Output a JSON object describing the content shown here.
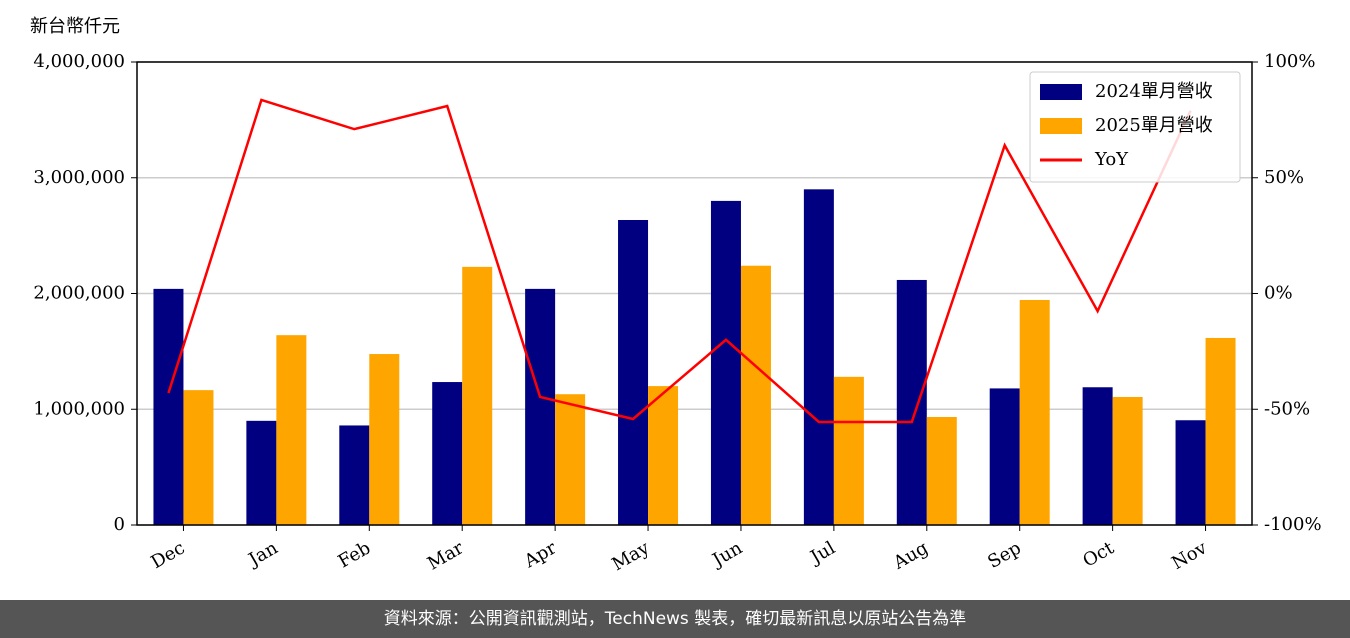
{
  "chart_data": {
    "type": "bar-line",
    "ylabel": "新台幣仟元",
    "categories": [
      "Dec",
      "Jan",
      "Feb",
      "Mar",
      "Apr",
      "May",
      "Jun",
      "Jul",
      "Aug",
      "Sep",
      "Oct",
      "Nov"
    ],
    "series": [
      {
        "name": "2024單月營收",
        "type": "bar",
        "color": "#000080",
        "values": [
          2040000,
          900000,
          860000,
          1235000,
          2040000,
          2635000,
          2800000,
          2900000,
          2117000,
          1180000,
          1190000,
          905000
        ]
      },
      {
        "name": "2025單月營收",
        "type": "bar",
        "color": "#ffa500",
        "values": [
          1165000,
          1640000,
          1477000,
          2230000,
          1130000,
          1200000,
          2240000,
          1280000,
          933000,
          1944000,
          1106000,
          1616000
        ]
      },
      {
        "name": "YoY",
        "type": "line",
        "axis": "y2",
        "color": "#ff0000",
        "values": [
          -43,
          83.6,
          71,
          81,
          -44.7,
          -54.2,
          -20,
          -55.5,
          -55.5,
          64,
          -7.6,
          79
        ]
      }
    ],
    "ylim": [
      0,
      4000000
    ],
    "yticks": [
      0,
      {
        "value": 1000000,
        "label": "1,000,000"
      },
      {
        "value": 2000000,
        "label": "2,000,000"
      },
      {
        "value": 3000000,
        "label": "3,000,000"
      },
      {
        "value": 4000000,
        "label": "4,000,000"
      }
    ],
    "y2lim": [
      -100,
      100
    ],
    "y2ticks": [
      {
        "value": -100,
        "label": "-100%"
      },
      {
        "value": -50,
        "label": "-50%"
      },
      {
        "value": 0,
        "label": "0%"
      },
      {
        "value": 50,
        "label": "50%"
      },
      {
        "value": 100,
        "label": "100%"
      }
    ],
    "grid": true,
    "legend": "upper right"
  },
  "footer": "資料來源：公開資訊觀測站，TechNews 製表，確切最新訊息以原站公告為準"
}
